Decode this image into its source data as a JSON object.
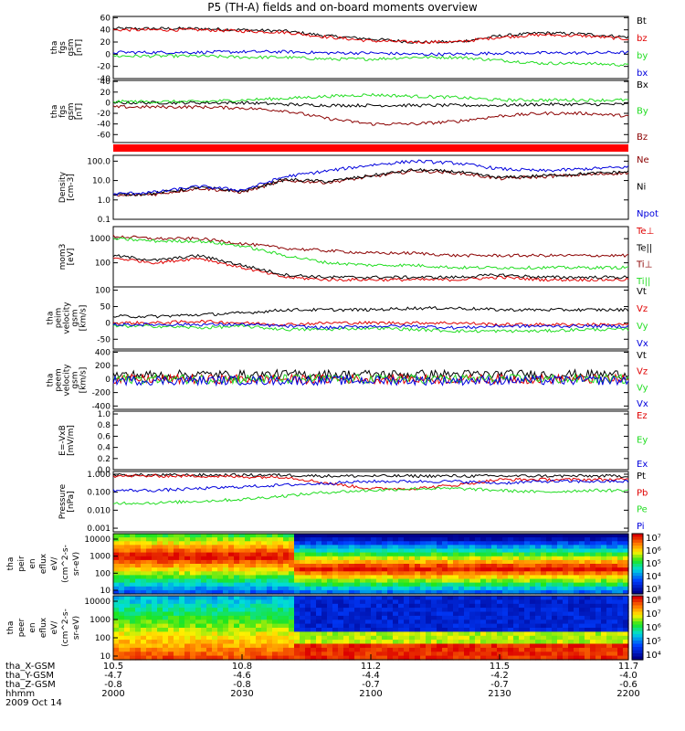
{
  "title": "P5 (TH-A) fields and on-board moments overview",
  "colors": {
    "black": "#000000",
    "red": "#e00000",
    "green": "#22dd22",
    "blue": "#0000dd",
    "darkred": "#8b0000"
  },
  "chart_data": {
    "type": "line",
    "title": "P5 (TH-A) fields and on-board moments overview",
    "panels": [
      {
        "ylabel": [
          "tha",
          "fgs",
          "gsm",
          "[nT]"
        ],
        "yticks": [
          "60",
          "40",
          "20",
          "0",
          "-20",
          "-40"
        ],
        "ylim": [
          -40,
          62
        ],
        "legend": [
          {
            "text": "Bt",
            "color": "#000000"
          },
          {
            "text": "bz",
            "color": "#e00000"
          },
          {
            "text": "by",
            "color": "#22dd22"
          },
          {
            "text": "bx",
            "color": "#0000dd"
          }
        ],
        "series": [
          {
            "color": "#000000",
            "base": [
              42,
              42,
              42,
              40,
              38,
              30,
              25,
              20,
              20,
              30,
              35,
              33,
              28
            ]
          },
          {
            "color": "#e00000",
            "base": [
              40,
              40,
              40,
              38,
              36,
              28,
              22,
              20,
              20,
              28,
              32,
              30,
              25
            ]
          },
          {
            "color": "#22dd22",
            "base": [
              -3,
              -3,
              -3,
              -5,
              -5,
              -8,
              -8,
              -5,
              -5,
              -10,
              -15,
              -15,
              -18
            ]
          },
          {
            "color": "#0000dd",
            "base": [
              3,
              3,
              3,
              4,
              4,
              2,
              2,
              0,
              0,
              2,
              2,
              2,
              3
            ]
          }
        ]
      },
      {
        "ylabel": [
          "tha",
          "fgs",
          "gsm",
          "[nT]"
        ],
        "yticks": [
          "40",
          "20",
          "0",
          "-20",
          "-40",
          "-60"
        ],
        "ylim": [
          -75,
          42
        ],
        "legend": [
          {
            "text": "Bx",
            "color": "#000000"
          },
          {
            "text": "By",
            "color": "#22dd22"
          },
          {
            "text": "Bz",
            "color": "#8b0000"
          }
        ],
        "series": [
          {
            "color": "#000000",
            "base": [
              0,
              0,
              0,
              0,
              -3,
              -5,
              -5,
              -5,
              -5,
              -5,
              -3,
              -3,
              -3
            ]
          },
          {
            "color": "#22dd22",
            "base": [
              2,
              2,
              2,
              5,
              8,
              12,
              15,
              12,
              10,
              5,
              5,
              5,
              5
            ]
          },
          {
            "color": "#8b0000",
            "base": [
              -8,
              -8,
              -8,
              -10,
              -15,
              -30,
              -40,
              -40,
              -35,
              -25,
              -20,
              -20,
              -25
            ]
          }
        ]
      },
      {
        "ylabel": [
          "Density",
          "[cm-3]"
        ],
        "yticks": [
          "100.0",
          "10.0",
          "1.0",
          "0.1"
        ],
        "ylim": [
          -1,
          2.3
        ],
        "log": true,
        "legend": [
          {
            "text": "Ne",
            "color": "#8b0000"
          },
          {
            "text": "Ni",
            "color": "#000000"
          },
          {
            "text": "Npot",
            "color": "#0000dd"
          }
        ],
        "series": [
          {
            "color": "#8b0000",
            "base": [
              0.2,
              0.3,
              0.6,
              0.4,
              1.0,
              0.9,
              1.2,
              1.5,
              1.4,
              1.1,
              1.2,
              1.3,
              1.4
            ]
          },
          {
            "color": "#000000",
            "base": [
              0.25,
              0.35,
              0.65,
              0.45,
              1.05,
              0.95,
              1.25,
              1.55,
              1.45,
              1.15,
              1.25,
              1.35,
              1.45
            ]
          },
          {
            "color": "#0000dd",
            "base": [
              0.3,
              0.4,
              0.7,
              0.5,
              1.2,
              1.5,
              1.8,
              2.0,
              1.9,
              1.6,
              1.5,
              1.6,
              1.7
            ]
          }
        ]
      },
      {
        "ylabel": [
          "mom3",
          "[eV]"
        ],
        "yticks": [
          "1000",
          "100"
        ],
        "ylim": [
          1.0,
          3.5
        ],
        "log": true,
        "legend": [
          {
            "text": "Te⊥",
            "color": "#e00000"
          },
          {
            "text": "Te||",
            "color": "#000000"
          },
          {
            "text": "Ti⊥",
            "color": "#8b0000"
          },
          {
            "text": "Ti||",
            "color": "#22dd22"
          }
        ],
        "series": [
          {
            "color": "#e00000",
            "base": [
              2.2,
              2.0,
              2.2,
              1.8,
              1.4,
              1.3,
              1.3,
              1.3,
              1.3,
              1.4,
              1.3,
              1.3,
              1.3
            ]
          },
          {
            "color": "#000000",
            "base": [
              2.3,
              2.1,
              2.3,
              1.9,
              1.5,
              1.4,
              1.4,
              1.4,
              1.4,
              1.5,
              1.4,
              1.4,
              1.4
            ]
          },
          {
            "color": "#8b0000",
            "base": [
              3.1,
              3.0,
              3.0,
              2.8,
              2.6,
              2.5,
              2.4,
              2.4,
              2.3,
              2.3,
              2.3,
              2.3,
              2.3
            ]
          },
          {
            "color": "#22dd22",
            "base": [
              3.0,
              2.9,
              2.9,
              2.7,
              2.3,
              2.0,
              1.9,
              1.9,
              1.8,
              1.8,
              1.8,
              1.8,
              1.8
            ]
          }
        ]
      },
      {
        "ylabel": [
          "tha",
          "peim",
          "velocity",
          "gsm",
          "[km/s]"
        ],
        "yticks": [
          "100",
          "50",
          "0",
          "-50"
        ],
        "ylim": [
          -80,
          110
        ],
        "legend": [
          {
            "text": "Vt",
            "color": "#000000"
          },
          {
            "text": "Vz",
            "color": "#e00000"
          },
          {
            "text": "Vy",
            "color": "#22dd22"
          },
          {
            "text": "Vx",
            "color": "#0000dd"
          }
        ],
        "series": [
          {
            "color": "#000000",
            "base": [
              20,
              20,
              25,
              30,
              40,
              40,
              40,
              45,
              45,
              40,
              40,
              40,
              40
            ]
          },
          {
            "color": "#e00000",
            "base": [
              0,
              0,
              5,
              0,
              -5,
              0,
              0,
              0,
              0,
              -5,
              -5,
              -5,
              -5
            ]
          },
          {
            "color": "#22dd22",
            "base": [
              -10,
              -10,
              -15,
              -10,
              -20,
              -20,
              -15,
              -20,
              -25,
              -25,
              -25,
              -20,
              -20
            ]
          },
          {
            "color": "#0000dd",
            "base": [
              -5,
              -5,
              -5,
              -5,
              -10,
              -15,
              -10,
              -10,
              -15,
              -10,
              -10,
              -10,
              -10
            ]
          }
        ]
      },
      {
        "ylabel": [
          "tha",
          "peem",
          "velocity",
          "gsm",
          "[km/s]"
        ],
        "yticks": [
          "400",
          "200",
          "0",
          "-200",
          "-400"
        ],
        "ylim": [
          -450,
          420
        ],
        "legend": [
          {
            "text": "Vt",
            "color": "#000000"
          },
          {
            "text": "Vz",
            "color": "#e00000"
          },
          {
            "text": "Vy",
            "color": "#22dd22"
          },
          {
            "text": "Vx",
            "color": "#0000dd"
          }
        ],
        "series": [
          {
            "color": "#000000",
            "base": [
              60,
              60,
              70,
              60,
              70,
              70,
              70,
              70,
              70,
              70,
              70,
              70,
              70
            ]
          },
          {
            "color": "#e00000",
            "base": [
              0,
              0,
              0,
              0,
              0,
              0,
              0,
              0,
              0,
              0,
              0,
              0,
              0
            ]
          },
          {
            "color": "#22dd22",
            "base": [
              0,
              0,
              0,
              0,
              0,
              0,
              0,
              0,
              0,
              0,
              0,
              0,
              0
            ]
          },
          {
            "color": "#0000dd",
            "base": [
              -20,
              -20,
              -20,
              -20,
              -20,
              -20,
              -20,
              -20,
              -20,
              -20,
              -20,
              -20,
              -20
            ]
          }
        ]
      },
      {
        "ylabel": [
          "E=-VxB",
          "[mV/m]"
        ],
        "yticks": [
          "1.0",
          "0.8",
          "0.6",
          "0.4",
          "0.2",
          "0.0"
        ],
        "ylim": [
          0,
          1.05
        ],
        "legend": [
          {
            "text": "Ez",
            "color": "#e00000"
          },
          {
            "text": "Ey",
            "color": "#22dd22"
          },
          {
            "text": "Ex",
            "color": "#0000dd"
          }
        ],
        "series": []
      },
      {
        "ylabel": [
          "Pressure",
          "[nPa]"
        ],
        "yticks": [
          "1.000",
          "0.100",
          "0.010",
          "0.001"
        ],
        "ylim": [
          -3.2,
          0.15
        ],
        "log": true,
        "legend": [
          {
            "text": "Pt",
            "color": "#000000"
          },
          {
            "text": "Pb",
            "color": "#e00000"
          },
          {
            "text": "Pe",
            "color": "#22dd22"
          },
          {
            "text": "Pi",
            "color": "#0000dd"
          }
        ],
        "series": [
          {
            "color": "#000000",
            "base": [
              -0.05,
              -0.05,
              -0.05,
              -0.05,
              -0.05,
              -0.1,
              -0.1,
              -0.1,
              -0.1,
              -0.1,
              -0.1,
              -0.1,
              -0.1
            ]
          },
          {
            "color": "#e00000",
            "base": [
              -0.1,
              -0.1,
              -0.1,
              -0.15,
              -0.15,
              -0.5,
              -0.8,
              -0.8,
              -0.6,
              -0.3,
              -0.3,
              -0.3,
              -0.3
            ]
          },
          {
            "color": "#22dd22",
            "base": [
              -1.6,
              -1.6,
              -1.5,
              -1.4,
              -1.2,
              -1.0,
              -0.9,
              -0.8,
              -0.8,
              -0.9,
              -1.0,
              -0.9,
              -0.9
            ]
          },
          {
            "color": "#0000dd",
            "base": [
              -0.9,
              -0.9,
              -0.8,
              -0.7,
              -0.6,
              -0.5,
              -0.4,
              -0.4,
              -0.4,
              -0.5,
              -0.4,
              -0.4,
              -0.4
            ]
          }
        ]
      }
    ],
    "spectrograms": [
      {
        "ylabel": [
          "tha",
          "peir",
          "en",
          "eflux",
          "eV/",
          "(cm^2-s-",
          "sr-eV)"
        ],
        "yticks": [
          "10000",
          "1000",
          "100",
          "10"
        ],
        "colorbar": [
          "10⁷",
          "10⁶",
          "10⁵",
          "10⁴",
          "10³"
        ]
      },
      {
        "ylabel": [
          "tha",
          "peer",
          "en",
          "eflux",
          "eV/",
          "(cm^2-s-",
          "sr-eV)"
        ],
        "yticks": [
          "10000",
          "1000",
          "100",
          "10"
        ],
        "colorbar": [
          "10⁸",
          "10⁷",
          "10⁶",
          "10⁵",
          "10⁴"
        ]
      }
    ],
    "x_ticks": [
      {
        "values": [
          "10.5",
          "-4.7",
          "-0.8",
          "2000"
        ]
      },
      {
        "values": [
          "10.8",
          "-4.6",
          "-0.8",
          "2030"
        ]
      },
      {
        "values": [
          "11.2",
          "-4.4",
          "-0.7",
          "2100"
        ]
      },
      {
        "values": [
          "11.5",
          "-4.2",
          "-0.7",
          "2130"
        ]
      },
      {
        "values": [
          "11.7",
          "-4.0",
          "-0.6",
          "2200"
        ]
      }
    ],
    "x_row_labels": [
      "tha_X-GSM",
      "tha_Y-GSM",
      "tha_Z-GSM",
      "hhmm"
    ],
    "date": "2009 Oct 14"
  }
}
